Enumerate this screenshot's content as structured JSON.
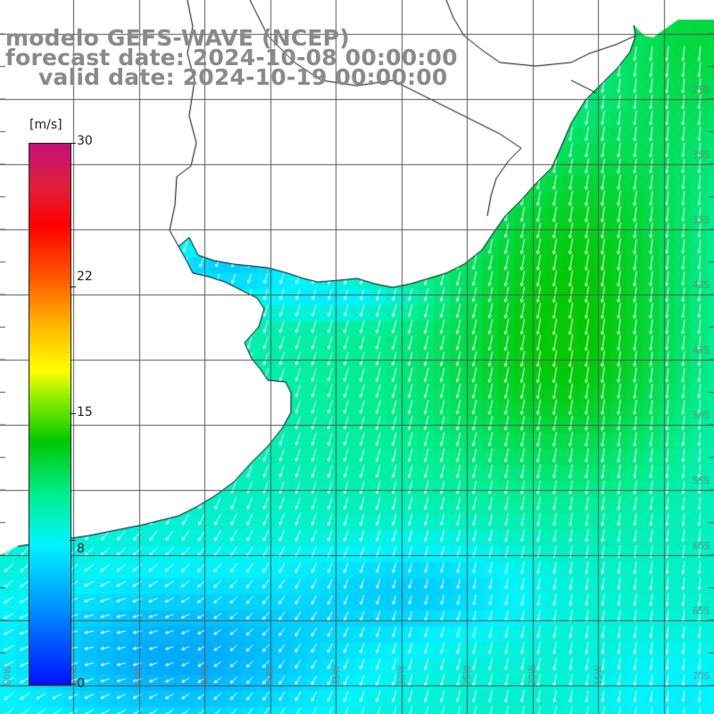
{
  "title": {
    "line1": "modelo GEFS-WAVE (NCEP)",
    "line2": "forecast date: 2024-10-08 00:00:00",
    "line3": "valid date: 2024-10-19 00:00:00"
  },
  "colorbar": {
    "unit": "[m/s]",
    "min": 0,
    "max": 30,
    "ticks": [
      {
        "label": "30",
        "value": 30
      },
      {
        "label": "22",
        "value": 22
      },
      {
        "label": "15",
        "value": 15
      },
      {
        "label": "8",
        "value": 8
      },
      {
        "label": "0",
        "value": 0
      }
    ]
  },
  "lon_labels": [
    "60W",
    "55W",
    "50W",
    "45W",
    "40W",
    "35W",
    "30W",
    "25W",
    "20W",
    "15W"
  ],
  "lat_labels": [
    "25S",
    "30S",
    "35S",
    "40S",
    "45S",
    "50S",
    "55S",
    "60S",
    "65S",
    "70S"
  ],
  "colors": {
    "land": "#ffffff",
    "grid": "#555555",
    "coast": "#000000",
    "arrow": "#ffffff"
  },
  "map": {
    "variable": "wind speed and direction",
    "region": "southwest Atlantic",
    "wind_direction": "mostly from north-northeast, turning westward in the southwest corner"
  }
}
